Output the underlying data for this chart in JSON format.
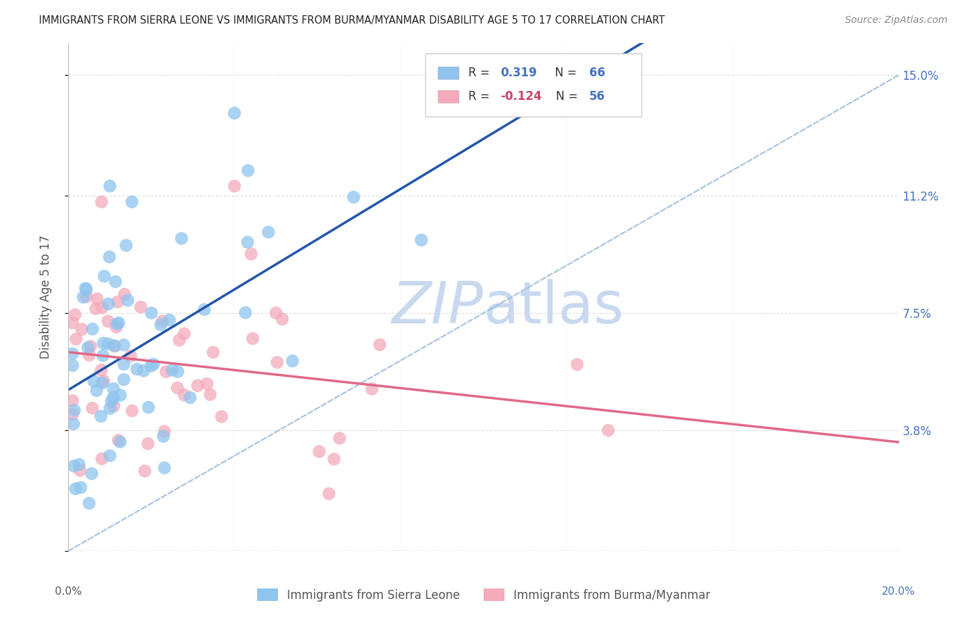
{
  "title": "IMMIGRANTS FROM SIERRA LEONE VS IMMIGRANTS FROM BURMA/MYANMAR DISABILITY AGE 5 TO 17 CORRELATION CHART",
  "source": "Source: ZipAtlas.com",
  "ylabel": "Disability Age 5 to 17",
  "xlim": [
    0.0,
    0.2
  ],
  "ylim": [
    0.0,
    0.16
  ],
  "yticks": [
    0.0,
    0.038,
    0.075,
    0.112,
    0.15
  ],
  "ytick_labels": [
    "",
    "3.8%",
    "7.5%",
    "11.2%",
    "15.0%"
  ],
  "xticks": [
    0.0,
    0.04,
    0.08,
    0.12,
    0.16,
    0.2
  ],
  "color_blue": "#8EC4EE",
  "color_pink": "#F4AABB",
  "trendline_blue": "#2255AA",
  "trendline_pink": "#E06888",
  "trendline_dashed_color": "#99BBDD",
  "watermark_color": "#C8D8EE",
  "background_color": "#FFFFFF",
  "legend_text_color": "#333333",
  "legend_val_color": "#4472C4",
  "legend_neg_color": "#CC4466",
  "axis_label_color": "#4472C4",
  "ylabel_color": "#555555",
  "title_color": "#222222",
  "source_color": "#888888",
  "grid_color": "#DDDDDD",
  "R_sl": 0.319,
  "N_sl": 66,
  "R_bm": -0.124,
  "N_bm": 56,
  "seed": 7
}
